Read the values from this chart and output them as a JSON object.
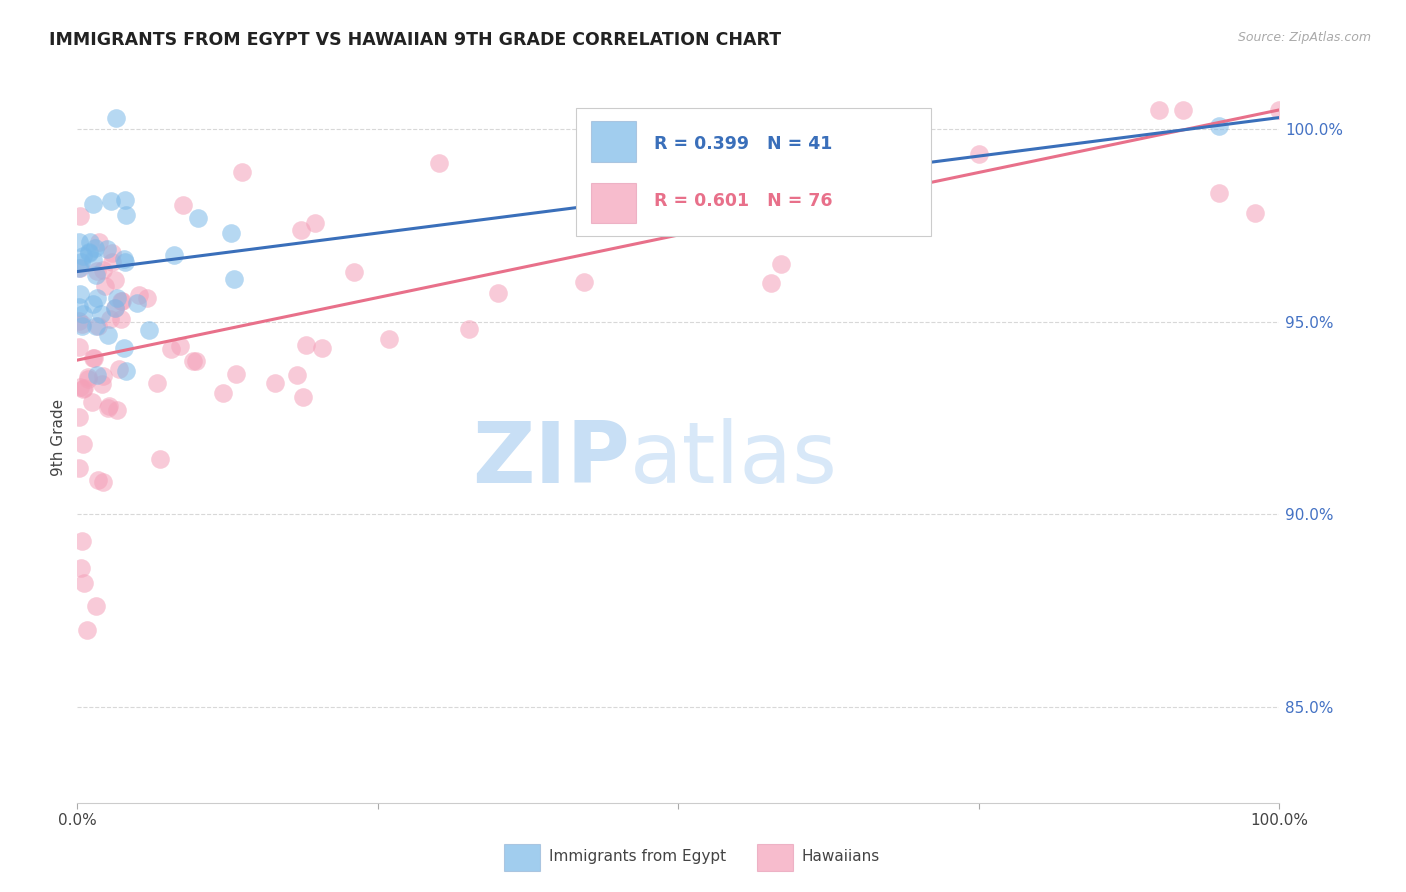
{
  "title": "IMMIGRANTS FROM EGYPT VS HAWAIIAN 9TH GRADE CORRELATION CHART",
  "source": "Source: ZipAtlas.com",
  "ylabel": "9th Grade",
  "right_yticks": [
    "100.0%",
    "95.0%",
    "90.0%",
    "85.0%"
  ],
  "right_ytick_vals": [
    1.0,
    0.95,
    0.9,
    0.85
  ],
  "xlim": [
    0.0,
    1.0
  ],
  "ylim": [
    0.825,
    1.015
  ],
  "legend_blue_r": "R = 0.399",
  "legend_blue_n": "N = 41",
  "legend_pink_r": "R = 0.601",
  "legend_pink_n": "N = 76",
  "blue_color": "#7ab8e8",
  "pink_color": "#f4a0b8",
  "blue_line_color": "#3a6fba",
  "pink_line_color": "#e8708a",
  "blue_line_x": [
    0.0,
    1.0
  ],
  "blue_line_y": [
    0.963,
    1.003
  ],
  "pink_line_x": [
    0.0,
    1.0
  ],
  "pink_line_y": [
    0.94,
    1.005
  ],
  "grid_color": "#d8d8d8",
  "watermark_zip_color": "#c8dff5",
  "watermark_atlas_color": "#d8e8f8"
}
